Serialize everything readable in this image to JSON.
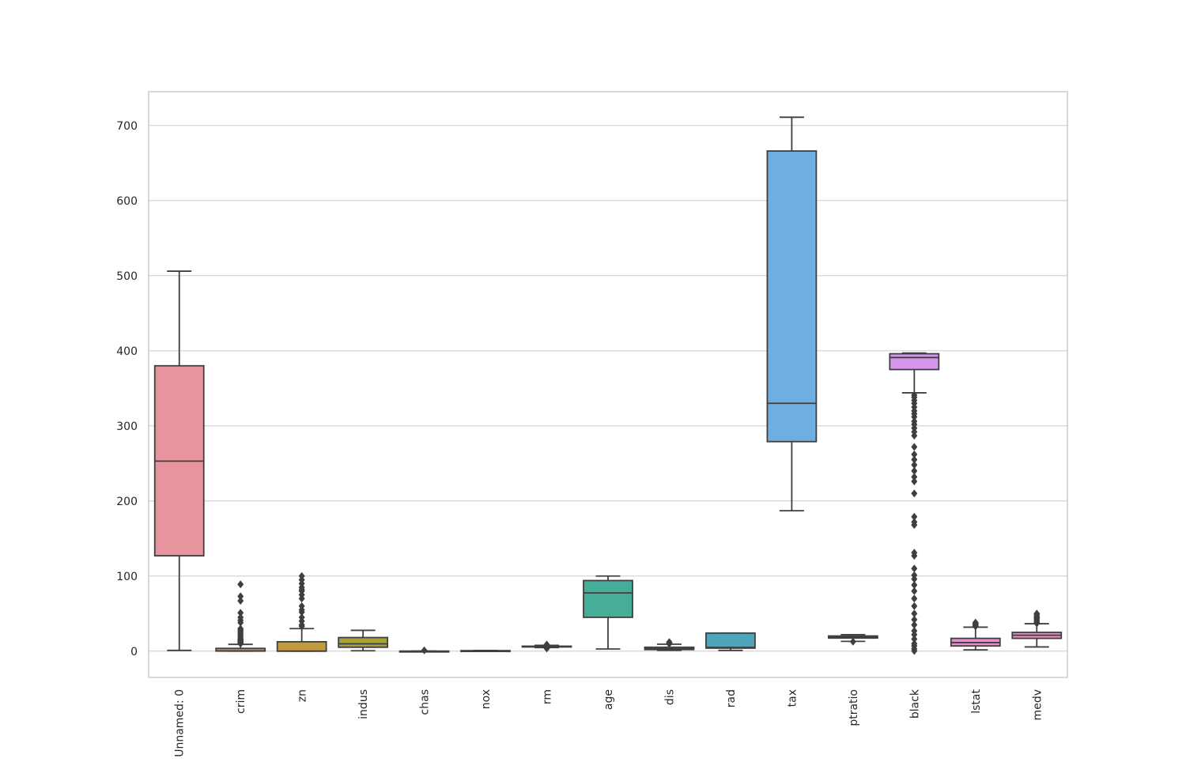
{
  "chart_data": {
    "type": "box",
    "title": "",
    "xlabel": "",
    "ylabel": "",
    "ylim": [
      -35,
      745
    ],
    "yticks": [
      0,
      100,
      200,
      300,
      400,
      500,
      600,
      700
    ],
    "grid": true,
    "legend": "none",
    "boxes": [
      {
        "label": "Unnamed: 0",
        "color": "#e8949e",
        "whislo": 1,
        "q1": 127,
        "med": 253,
        "q3": 380,
        "whishi": 506,
        "fliers": []
      },
      {
        "label": "crim",
        "color": "#d28f5a",
        "whislo": 0.01,
        "q1": 0.08,
        "med": 0.26,
        "q3": 3.68,
        "whishi": 9,
        "fliers": [
          10,
          11,
          12,
          13,
          14,
          15,
          16,
          18,
          20,
          22,
          24,
          26,
          28,
          30,
          38,
          41,
          45,
          51,
          67,
          73,
          89
        ]
      },
      {
        "label": "zn",
        "color": "#c39b3c",
        "whislo": 0,
        "q1": 0,
        "med": 0,
        "q3": 12.5,
        "whishi": 30,
        "fliers": [
          33,
          35,
          40,
          45,
          52,
          55,
          60,
          70,
          75,
          80,
          82,
          85,
          90,
          95,
          100
        ]
      },
      {
        "label": "indus",
        "color": "#a8a23a",
        "whislo": 0.5,
        "q1": 5.2,
        "med": 9.7,
        "q3": 18.1,
        "whishi": 27.7,
        "fliers": []
      },
      {
        "label": "chas",
        "color": "#80b13a",
        "whislo": 0,
        "q1": 0,
        "med": 0,
        "q3": 0,
        "whishi": 0,
        "fliers": [
          1
        ]
      },
      {
        "label": "nox",
        "color": "#3eb150",
        "whislo": 0.39,
        "q1": 0.45,
        "med": 0.54,
        "q3": 0.62,
        "whishi": 0.87,
        "fliers": []
      },
      {
        "label": "rm",
        "color": "#3db189",
        "whislo": 4.8,
        "q1": 5.9,
        "med": 6.2,
        "q3": 6.6,
        "whishi": 7.7,
        "fliers": [
          3.6,
          4.1,
          8.0,
          8.4,
          8.8
        ]
      },
      {
        "label": "age",
        "color": "#46ad98",
        "whislo": 2.9,
        "q1": 45,
        "med": 77.5,
        "q3": 94,
        "whishi": 100,
        "fliers": []
      },
      {
        "label": "dis",
        "color": "#48aaa4",
        "whislo": 1.1,
        "q1": 2.1,
        "med": 3.2,
        "q3": 5.2,
        "whishi": 9.2,
        "fliers": [
          9.9,
          10.6,
          12.1
        ]
      },
      {
        "label": "rad",
        "color": "#4aa6b8",
        "whislo": 1,
        "q1": 4,
        "med": 5,
        "q3": 24,
        "whishi": 24,
        "fliers": []
      },
      {
        "label": "tax",
        "color": "#6eaee3",
        "whislo": 187,
        "q1": 279,
        "med": 330,
        "q3": 666,
        "whishi": 711,
        "fliers": []
      },
      {
        "label": "ptratio",
        "color": "#a3a8ee",
        "whislo": 13,
        "q1": 17.4,
        "med": 19.1,
        "q3": 20.2,
        "whishi": 22,
        "fliers": [
          12.6
        ]
      },
      {
        "label": "black",
        "color": "#d596ec",
        "whislo": 344,
        "q1": 375,
        "med": 391,
        "q3": 396,
        "whishi": 396.9,
        "fliers": [
          0.3,
          3,
          7,
          10,
          16,
          22,
          27,
          35,
          42,
          50,
          60,
          70,
          80,
          88,
          96,
          101,
          110,
          127,
          131,
          168,
          172,
          179,
          210,
          226,
          232,
          240,
          248,
          255,
          262,
          272,
          287,
          292,
          297,
          302,
          306,
          312,
          316,
          320,
          325,
          330,
          334,
          338,
          341
        ]
      },
      {
        "label": "lstat",
        "color": "#ea8dd0",
        "whislo": 1.7,
        "q1": 6.9,
        "med": 11.4,
        "q3": 17,
        "whishi": 31.9,
        "fliers": [
          33,
          34,
          35,
          36,
          37,
          38
        ]
      },
      {
        "label": "medv",
        "color": "#e68fc0",
        "whislo": 5.6,
        "q1": 17,
        "med": 21.2,
        "q3": 25,
        "whishi": 36.5,
        "fliers": [
          37,
          38,
          39,
          41,
          43,
          44,
          45,
          46,
          48,
          50
        ]
      }
    ]
  }
}
